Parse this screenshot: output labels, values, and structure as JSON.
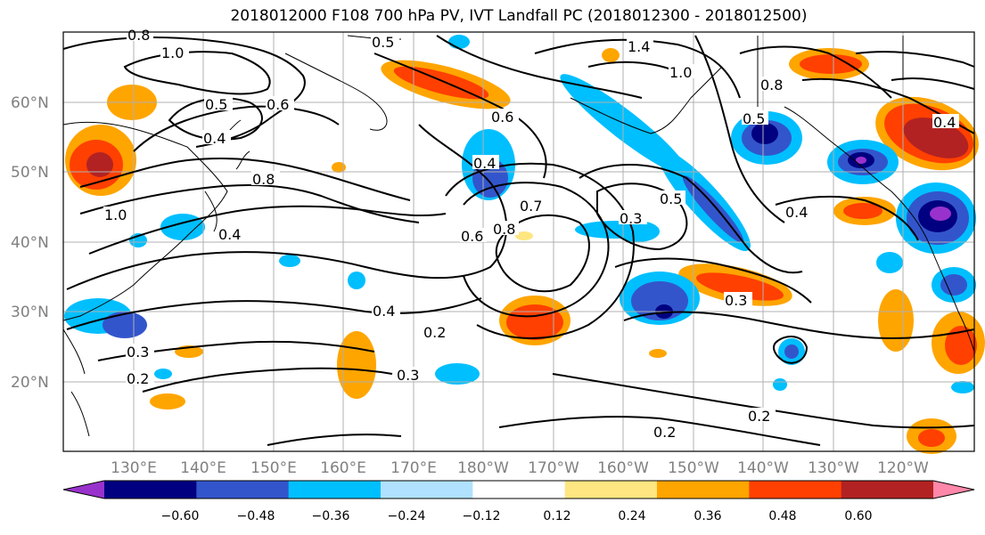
{
  "title": "2018012000 F108 700 hPa PV, IVT Landfall PC (2018012300 - 2018012500)",
  "map": {
    "lat_labels": [
      "60°N",
      "50°N",
      "40°N",
      "30°N",
      "20°N"
    ],
    "lon_labels": [
      "130°E",
      "140°E",
      "150°E",
      "160°E",
      "170°E",
      "180°W",
      "170°W",
      "160°W",
      "150°W",
      "140°W",
      "130°W",
      "120°W"
    ],
    "contour_labels": [
      "0.8",
      "1.0",
      "0.5",
      "1.4",
      "0.5",
      "0.6",
      "0.4",
      "0.8",
      "0.6",
      "0.4",
      "1.0",
      "0.8",
      "0.7",
      "0.6",
      "0.4",
      "0.4",
      "0.3",
      "0.3",
      "0.3",
      "0.2",
      "0.3",
      "0.2",
      "0.2",
      "0.2",
      "0.5",
      "0.8",
      "0.5",
      "0.4",
      "1.0",
      "0.4"
    ]
  },
  "colorbar": {
    "tick_labels": [
      "−0.60",
      "−0.48",
      "−0.36",
      "−0.24",
      "−0.12",
      "0.12",
      "0.24",
      "0.36",
      "0.48",
      "0.60"
    ],
    "colors": [
      "#9932cc",
      "#000080",
      "#3355cc",
      "#00bfff",
      "#b0e2ff",
      "#ffffff",
      "#ffe680",
      "#ffa500",
      "#ff4000",
      "#b22222",
      "#ff88aa"
    ]
  }
}
